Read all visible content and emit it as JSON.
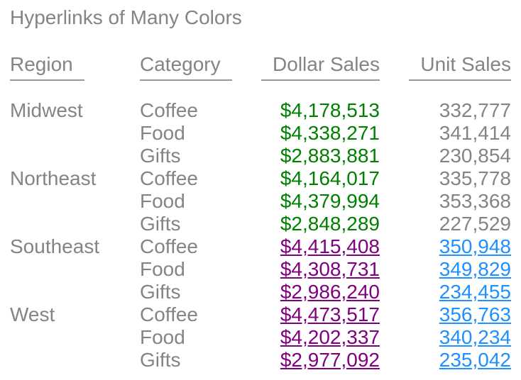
{
  "title": "Hyperlinks of Many Colors",
  "colors": {
    "background": "#ffffff",
    "text_gray": "#848484",
    "rule_gray": "#9a9a9a",
    "green": "#008000",
    "purple_link": "#800080",
    "blue_link": "#1e90ff"
  },
  "chart_data": {
    "type": "table",
    "title": "Hyperlinks of Many Colors",
    "columns": [
      "Region",
      "Category",
      "Dollar Sales",
      "Unit Sales"
    ],
    "rows": [
      {
        "region": "Midwest",
        "category": "Coffee",
        "dollar_sales": "$4,178,513",
        "unit_sales": "332,777",
        "hyperlinked": false
      },
      {
        "region": "",
        "category": "Food",
        "dollar_sales": "$4,338,271",
        "unit_sales": "341,414",
        "hyperlinked": false
      },
      {
        "region": "",
        "category": "Gifts",
        "dollar_sales": "$2,883,881",
        "unit_sales": "230,854",
        "hyperlinked": false
      },
      {
        "region": "Northeast",
        "category": "Coffee",
        "dollar_sales": "$4,164,017",
        "unit_sales": "335,778",
        "hyperlinked": false
      },
      {
        "region": "",
        "category": "Food",
        "dollar_sales": "$4,379,994",
        "unit_sales": "353,368",
        "hyperlinked": false
      },
      {
        "region": "",
        "category": "Gifts",
        "dollar_sales": "$2,848,289",
        "unit_sales": "227,529",
        "hyperlinked": false
      },
      {
        "region": "Southeast",
        "category": "Coffee",
        "dollar_sales": "$4,415,408",
        "unit_sales": "350,948",
        "hyperlinked": true
      },
      {
        "region": "",
        "category": "Food",
        "dollar_sales": "$4,308,731",
        "unit_sales": "349,829",
        "hyperlinked": true
      },
      {
        "region": "",
        "category": "Gifts",
        "dollar_sales": "$2,986,240",
        "unit_sales": "234,455",
        "hyperlinked": true
      },
      {
        "region": "West",
        "category": "Coffee",
        "dollar_sales": "$4,473,517",
        "unit_sales": "356,763",
        "hyperlinked": true
      },
      {
        "region": "",
        "category": "Food",
        "dollar_sales": "$4,202,337",
        "unit_sales": "340,234",
        "hyperlinked": true
      },
      {
        "region": "",
        "category": "Gifts",
        "dollar_sales": "$2,977,092",
        "unit_sales": "235,042",
        "hyperlinked": true
      }
    ]
  }
}
